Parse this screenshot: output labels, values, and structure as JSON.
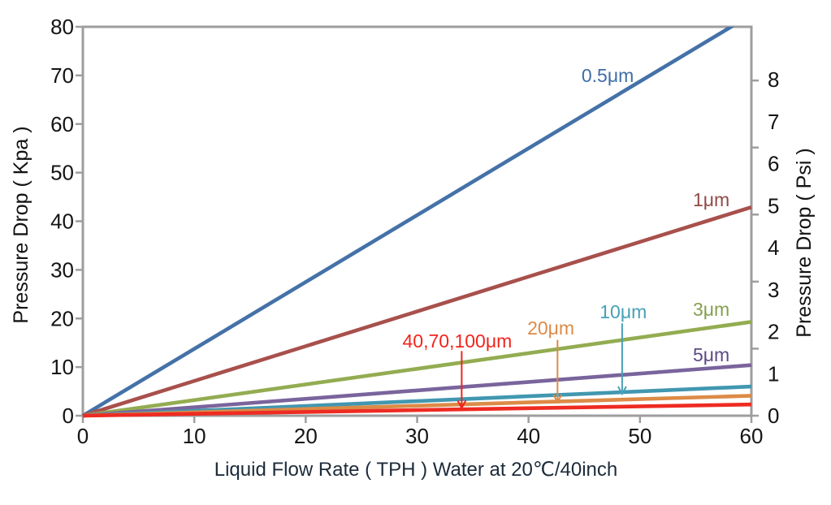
{
  "page": {
    "background": "#ffffff"
  },
  "chart_data": {
    "type": "line",
    "title": "",
    "xlabel": "Liquid Flow Rate ( TPH ) Water at 20℃/40inch",
    "ylabel_left": "Pressure Drop ( Kpa )",
    "ylabel_right": "Pressure Drop ( Psi )",
    "x_range": [
      0,
      60
    ],
    "x_ticks": [
      0,
      10,
      20,
      30,
      40,
      50,
      60
    ],
    "y_left_range": [
      0,
      80
    ],
    "y_left_ticks": [
      0,
      10,
      20,
      30,
      40,
      50,
      60,
      70,
      80
    ],
    "y_right_label_range": [
      0,
      9.26
    ],
    "y_right_labels": [
      0,
      1,
      2,
      3,
      4,
      5,
      6,
      7,
      8
    ],
    "y_right_tick_values_psi": [
      0,
      2,
      4,
      6,
      8,
      10
    ],
    "psi_to_kpa": 6.895,
    "grid": "off",
    "axis_color": "#9e9e9e",
    "tick_label_color": "#141414",
    "series": [
      {
        "name": "0.5μm",
        "color": "#4472a8",
        "x": [
          0,
          60
        ],
        "y_kpa": [
          0,
          82.5
        ],
        "clipped_at_top": true
      },
      {
        "name": "1μm",
        "color": "#a8504c",
        "x": [
          0,
          60
        ],
        "y_kpa": [
          0,
          42.9
        ],
        "clipped_at_top": false
      },
      {
        "name": "3μm",
        "color": "#93ac51",
        "x": [
          0,
          60
        ],
        "y_kpa": [
          0,
          19.3
        ],
        "clipped_at_top": false
      },
      {
        "name": "5μm",
        "color": "#7a649c",
        "x": [
          0,
          60
        ],
        "y_kpa": [
          0,
          10.4
        ],
        "clipped_at_top": false
      },
      {
        "name": "10μm",
        "color": "#4197b0",
        "x": [
          0,
          60
        ],
        "y_kpa": [
          0,
          6.0
        ],
        "clipped_at_top": false
      },
      {
        "name": "20μm",
        "color": "#dc8b47",
        "x": [
          0,
          60
        ],
        "y_kpa": [
          0,
          4.1
        ],
        "clipped_at_top": false
      },
      {
        "name": "40,70,100μm",
        "color": "#ee2b22",
        "x": [
          0,
          60
        ],
        "y_kpa": [
          0,
          2.3
        ],
        "clipped_at_top": false
      }
    ],
    "annotations": [
      {
        "text": "0.5μm",
        "color": "#3f6ea6",
        "x_tph": 47.1,
        "y_kpa": 70.0
      },
      {
        "text": "1μm",
        "color": "#8f4a45",
        "x_tph": 56.4,
        "y_kpa": 44.4
      },
      {
        "text": "3μm",
        "color": "#85a04e",
        "x_tph": 56.4,
        "y_kpa": 21.9
      },
      {
        "text": "5μm",
        "color": "#5c4a85",
        "x_tph": 56.4,
        "y_kpa": 12.5
      },
      {
        "text": "10μm",
        "color": "#47a0b8",
        "x_tph": 48.5,
        "y_kpa": 21.4,
        "arrow": {
          "x_tph": 48.4,
          "y_from_kpa": 19.0,
          "y_to_kpa": 4.5
        }
      },
      {
        "text": "20μm",
        "color": "#dc8b47",
        "x_tph": 42.0,
        "y_kpa": 18.0,
        "arrow": {
          "x_tph": 42.6,
          "y_from_kpa": 15.6,
          "y_to_kpa": 2.8
        }
      },
      {
        "text": "40,70,100μm",
        "color": "#f2241c",
        "x_tph": 33.6,
        "y_kpa": 15.4,
        "arrow": {
          "x_tph": 34.0,
          "y_from_kpa": 13.3,
          "y_to_kpa": 1.6
        }
      }
    ]
  }
}
